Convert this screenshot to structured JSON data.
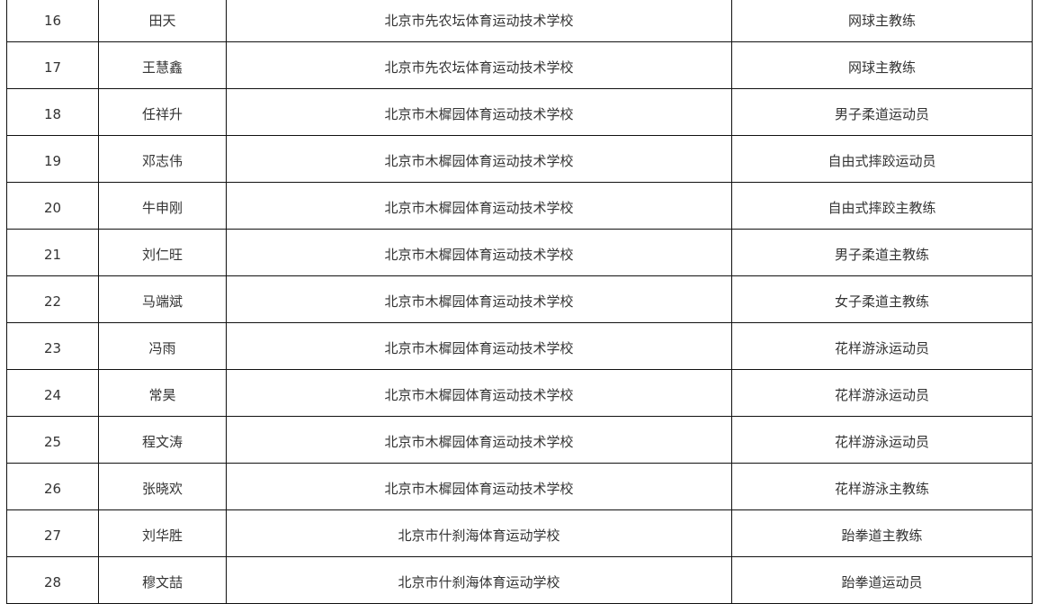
{
  "rows": [
    {
      "no": "16",
      "name": "田天",
      "unit": "北京市先农坛体育运动技术学校",
      "role": "网球主教练"
    },
    {
      "no": "17",
      "name": "王慧鑫",
      "unit": "北京市先农坛体育运动技术学校",
      "role": "网球主教练"
    },
    {
      "no": "18",
      "name": "任祥升",
      "unit": "北京市木樨园体育运动技术学校",
      "role": "男子柔道运动员"
    },
    {
      "no": "19",
      "name": "邓志伟",
      "unit": "北京市木樨园体育运动技术学校",
      "role": "自由式摔跤运动员"
    },
    {
      "no": "20",
      "name": "牛申刚",
      "unit": "北京市木樨园体育运动技术学校",
      "role": "自由式摔跤主教练"
    },
    {
      "no": "21",
      "name": "刘仁旺",
      "unit": "北京市木樨园体育运动技术学校",
      "role": "男子柔道主教练"
    },
    {
      "no": "22",
      "name": "马端斌",
      "unit": "北京市木樨园体育运动技术学校",
      "role": "女子柔道主教练"
    },
    {
      "no": "23",
      "name": "冯雨",
      "unit": "北京市木樨园体育运动技术学校",
      "role": "花样游泳运动员"
    },
    {
      "no": "24",
      "name": "常昊",
      "unit": "北京市木樨园体育运动技术学校",
      "role": "花样游泳运动员"
    },
    {
      "no": "25",
      "name": "程文涛",
      "unit": "北京市木樨园体育运动技术学校",
      "role": "花样游泳运动员"
    },
    {
      "no": "26",
      "name": "张晓欢",
      "unit": "北京市木樨园体育运动技术学校",
      "role": "花样游泳主教练"
    },
    {
      "no": "27",
      "name": "刘华胜",
      "unit": "北京市什刹海体育运动学校",
      "role": "跆拳道主教练"
    },
    {
      "no": "28",
      "name": "穆文喆",
      "unit": "北京市什刹海体育运动学校",
      "role": "跆拳道运动员"
    }
  ]
}
